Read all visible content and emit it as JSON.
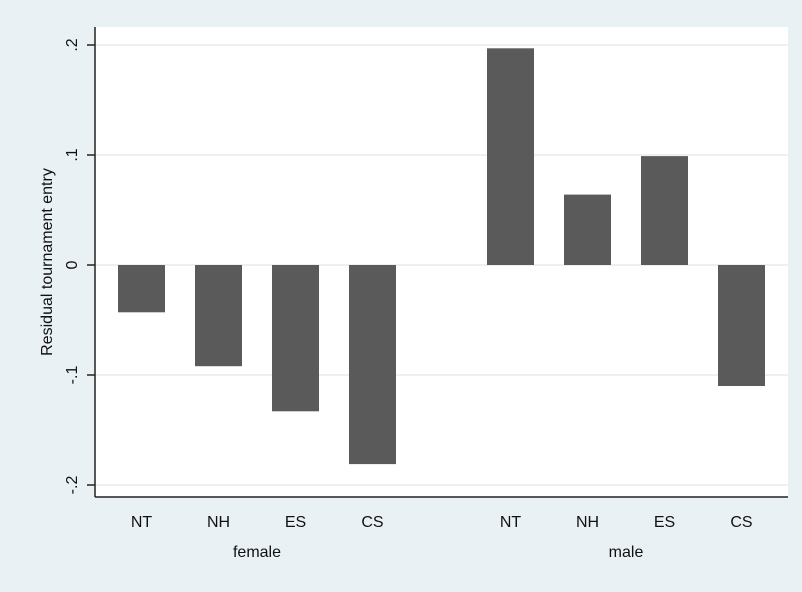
{
  "chart_data": {
    "type": "bar",
    "ylabel": "Residual tournament entry",
    "y_ticks": [
      {
        "value": 0.2,
        "label": ".2"
      },
      {
        "value": 0.1,
        "label": ".1"
      },
      {
        "value": 0,
        "label": "0"
      },
      {
        "value": -0.1,
        "label": "-.1"
      },
      {
        "value": -0.2,
        "label": "-.2"
      }
    ],
    "ylim": [
      -0.21,
      0.21
    ],
    "grid": true,
    "groups": [
      {
        "name": "female",
        "categories": [
          "NT",
          "NH",
          "ES",
          "CS"
        ],
        "values": [
          -0.043,
          -0.092,
          -0.133,
          -0.181
        ]
      },
      {
        "name": "male",
        "categories": [
          "NT",
          "NH",
          "ES",
          "CS"
        ],
        "values": [
          0.197,
          0.064,
          0.099,
          -0.11
        ]
      }
    ],
    "colors": {
      "bar": "#5a5a5a",
      "plot_background": "#ffffff",
      "page_background": "#eaf1f4",
      "grid": "#e6ecef",
      "axis": "#222222"
    }
  }
}
